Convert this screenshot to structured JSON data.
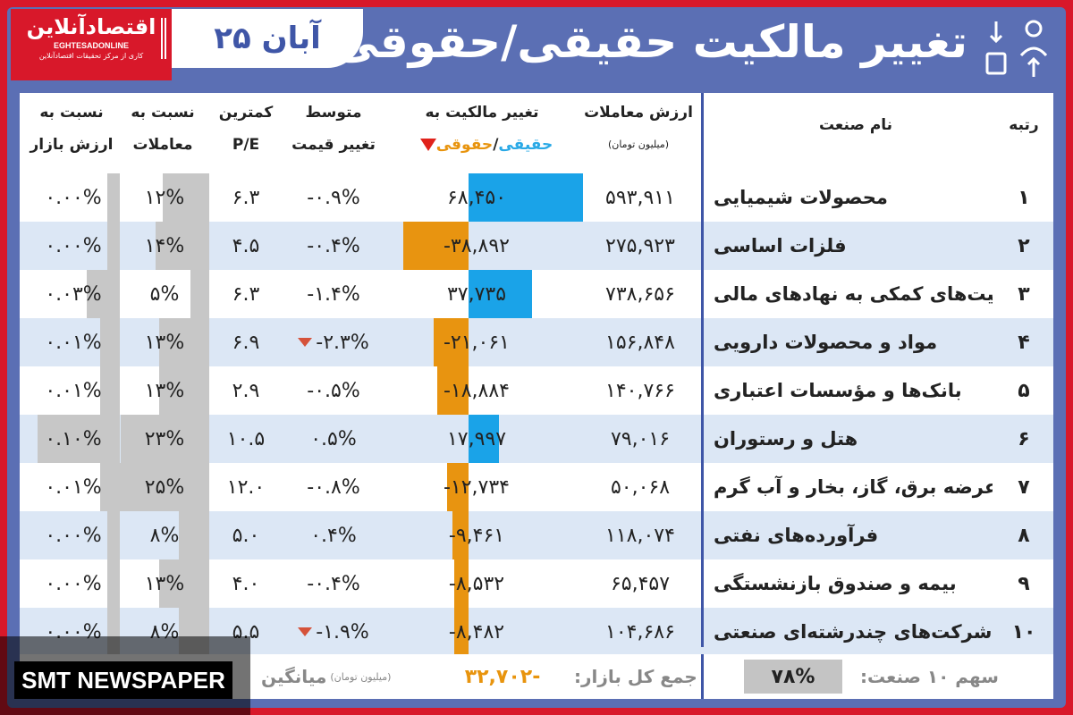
{
  "header": {
    "logo_text": "اقتصادآنلاین",
    "logo_sub": "EGHTESADONLINE",
    "logo_tag": "کاری از مرکز تحقیقات اقتصادآنلاین",
    "date": "۲۵ آبان",
    "title": "تغییر مالکیت حقیقی/حقوقی"
  },
  "columns": {
    "rank": "رتبه",
    "industry": "نام صنعت",
    "value_l1": "ارزش معاملات",
    "value_l2": "(میلیون تومان)",
    "change_l1": "تغییر مالکیت به",
    "change_a": "حقیقی",
    "change_sep": "/",
    "change_b": "حقوقی",
    "price_l1": "متوسط",
    "price_l2": "تغییر قیمت",
    "pe_l1": "کمترین",
    "pe_l2": "P/E",
    "trade_l1": "نسبت به",
    "trade_l2": "معاملات",
    "market_l1": "نسبت به",
    "market_l2": "ارزش بازار"
  },
  "rows": [
    {
      "rank": "۱",
      "name": "محصولات شیمیایی",
      "value": "۵۹۳,۹۱۱",
      "change": "۶۸,۴۵۰",
      "change_num": 68450,
      "price": "-۰.۹%",
      "price_down": false,
      "pe": "۶.۳",
      "trade": "۱۲%",
      "trade_num": 12,
      "market": "۰.۰۰%",
      "market_num": 0.0
    },
    {
      "rank": "۲",
      "name": "فلزات اساسی",
      "value": "۲۷۵,۹۲۳",
      "change": "-۳۸,۸۹۲",
      "change_num": -38892,
      "price": "-۰.۴%",
      "price_down": false,
      "pe": "۴.۵",
      "trade": "۱۴%",
      "trade_num": 14,
      "market": "۰.۰۰%",
      "market_num": 0.0
    },
    {
      "rank": "۳",
      "name": "فعالیت‌های کمکی به نهادهای مالی",
      "value": "۷۳۸,۶۵۶",
      "change": "۳۷,۷۳۵",
      "change_num": 37735,
      "price": "-۱.۴%",
      "price_down": false,
      "pe": "۶.۳",
      "trade": "۵%",
      "trade_num": 5,
      "market": "۰.۰۳%",
      "market_num": 0.03
    },
    {
      "rank": "۴",
      "name": "مواد و محصولات دارویی",
      "value": "۱۵۶,۸۴۸",
      "change": "-۲۱,۰۶۱",
      "change_num": -21061,
      "price": "-۲.۳%",
      "price_down": true,
      "pe": "۶.۹",
      "trade": "۱۳%",
      "trade_num": 13,
      "market": "۰.۰۱%",
      "market_num": 0.01
    },
    {
      "rank": "۵",
      "name": "بانک‌ها و مؤسسات اعتباری",
      "value": "۱۴۰,۷۶۶",
      "change": "-۱۸,۸۸۴",
      "change_num": -18884,
      "price": "-۰.۵%",
      "price_down": false,
      "pe": "۲.۹",
      "trade": "۱۳%",
      "trade_num": 13,
      "market": "۰.۰۱%",
      "market_num": 0.01
    },
    {
      "rank": "۶",
      "name": "هتل و رستوران",
      "value": "۷۹,۰۱۶",
      "change": "۱۷,۹۹۷",
      "change_num": 17997,
      "price": "۰.۵%",
      "price_down": false,
      "pe": "۱۰.۵",
      "trade": "۲۳%",
      "trade_num": 23,
      "market": "۰.۱۰%",
      "market_num": 0.1
    },
    {
      "rank": "۷",
      "name": "عرضه برق، گاز، بخار و آب گرم",
      "value": "۵۰,۰۶۸",
      "change": "-۱۲,۷۳۴",
      "change_num": -12734,
      "price": "-۰.۸%",
      "price_down": false,
      "pe": "۱۲.۰",
      "trade": "۲۵%",
      "trade_num": 25,
      "market": "۰.۰۱%",
      "market_num": 0.01
    },
    {
      "rank": "۸",
      "name": "فرآورده‌های نفتی",
      "value": "۱۱۸,۰۷۴",
      "change": "-۹,۴۶۱",
      "change_num": -9461,
      "price": "۰.۴%",
      "price_down": false,
      "pe": "۵.۰",
      "trade": "۸%",
      "trade_num": 8,
      "market": "۰.۰۰%",
      "market_num": 0.0
    },
    {
      "rank": "۹",
      "name": "بیمه و صندوق بازنشستگی",
      "value": "۶۵,۴۵۷",
      "change": "-۸,۵۳۲",
      "change_num": -8532,
      "price": "-۰.۴%",
      "price_down": false,
      "pe": "۴.۰",
      "trade": "۱۳%",
      "trade_num": 13,
      "market": "۰.۰۰%",
      "market_num": 0.0
    },
    {
      "rank": "۱۰",
      "name": "شرکت‌های چندرشته‌ای صنعتی",
      "value": "۱۰۴,۶۸۶",
      "change": "-۸,۴۸۲",
      "change_num": -8482,
      "price": "-۱.۹%",
      "price_down": true,
      "pe": "۵.۵",
      "trade": "۸%",
      "trade_num": 8,
      "market": "۰.۰۰%",
      "market_num": 0.0
    }
  ],
  "footer": {
    "share_label": "سهم ۱۰ صنعت:",
    "share_value": "۷۸%",
    "market_total_label": "جمع کل بازار:",
    "market_total_value": "-۳۲,۷۰۲",
    "avg_unit": "(میلیون تومان)",
    "avg_label": "میانگین"
  },
  "watermark": "SMT NEWSPAPER",
  "colors": {
    "frame": "#5b6fb4",
    "border": "#d8182a",
    "positive": "#1aa3e8",
    "negative": "#e89410",
    "row_alt": "#dce7f5"
  }
}
